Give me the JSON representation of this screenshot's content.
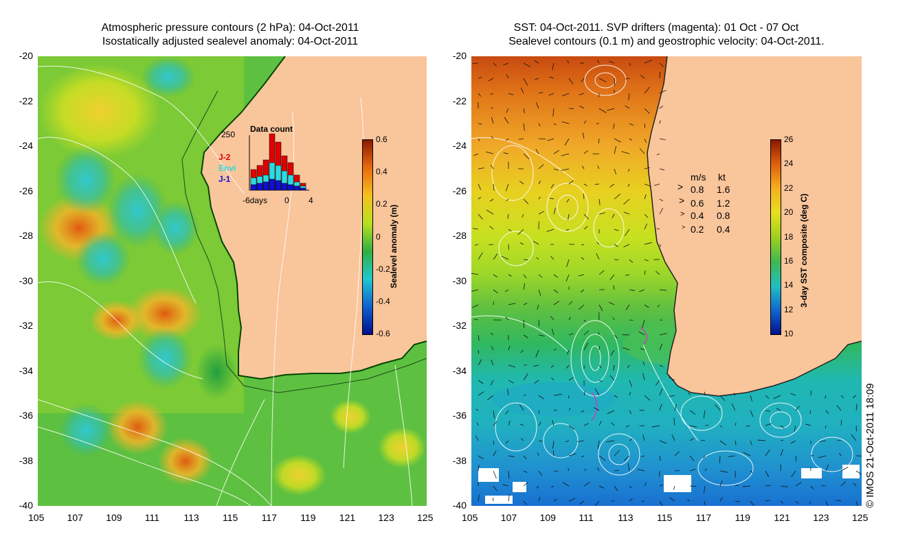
{
  "left_panel": {
    "title_line1": "Atmospheric pressure contours (2 hPa): 04-Oct-2011",
    "title_line2": "Isostatically adjusted sealevel anomaly: 04-Oct-2011",
    "lat_ticks": [
      "-20",
      "-22",
      "-24",
      "-26",
      "-28",
      "-30",
      "-32",
      "-34",
      "-36",
      "-38",
      "-40"
    ],
    "lon_ticks": [
      "105",
      "107",
      "109",
      "111",
      "113",
      "115",
      "117",
      "119",
      "121",
      "123",
      "125"
    ],
    "colorbar": {
      "label": "Sealevel anomaly (m)",
      "ticks": [
        "0.6",
        "0.4",
        "0.2",
        "0",
        "-0.2",
        "-0.4",
        "-0.6"
      ]
    },
    "inset": {
      "title": "Data count",
      "ymax_label": "250",
      "x_labels": [
        "-6days",
        "0",
        "4"
      ],
      "legend": [
        {
          "name": "J-2",
          "color": "#e00000"
        },
        {
          "name": "Envi",
          "color": "#30d8e0"
        },
        {
          "name": "J-1",
          "color": "#1010d0"
        }
      ]
    }
  },
  "right_panel": {
    "title_line1": "SST: 04-Oct-2011. SVP drifters (magenta): 01 Oct - 07 Oct",
    "title_line2": "Sealevel contours (0.1 m) and geostrophic velocity: 04-Oct-2011.",
    "lat_ticks": [
      "-20",
      "-22",
      "-24",
      "-26",
      "-28",
      "-30",
      "-32",
      "-34",
      "-36",
      "-38",
      "-40"
    ],
    "lon_ticks": [
      "105",
      "107",
      "109",
      "111",
      "113",
      "115",
      "117",
      "119",
      "121",
      "123",
      "125"
    ],
    "colorbar": {
      "label": "3-day SST composite (deg C)",
      "ticks": [
        "26",
        "24",
        "22",
        "20",
        "18",
        "16",
        "14",
        "12",
        "10"
      ]
    },
    "velocity_legend": {
      "header_ms": "m/s",
      "header_kt": "kt",
      "rows": [
        {
          "ms": "0.8",
          "kt": "1.6"
        },
        {
          "ms": "0.6",
          "kt": "1.2"
        },
        {
          "ms": "0.4",
          "kt": "0.8"
        },
        {
          "ms": "0.2",
          "kt": "0.4"
        }
      ]
    }
  },
  "credit": "© IMOS 21-Oct-2011 18:09",
  "colors": {
    "land": "#f9c59b",
    "ocean_green": "#3cba3c",
    "anomaly_scale": [
      "#8b1a00",
      "#e86a10",
      "#f5c020",
      "#b8e020",
      "#30b040",
      "#20c8d0",
      "#1060d0",
      "#00108a"
    ],
    "sst_scale": [
      "#8b1a00",
      "#e06010",
      "#f5b020",
      "#e8e020",
      "#a0d020",
      "#40b850",
      "#20c0c0",
      "#1068d0",
      "#00108a"
    ]
  }
}
